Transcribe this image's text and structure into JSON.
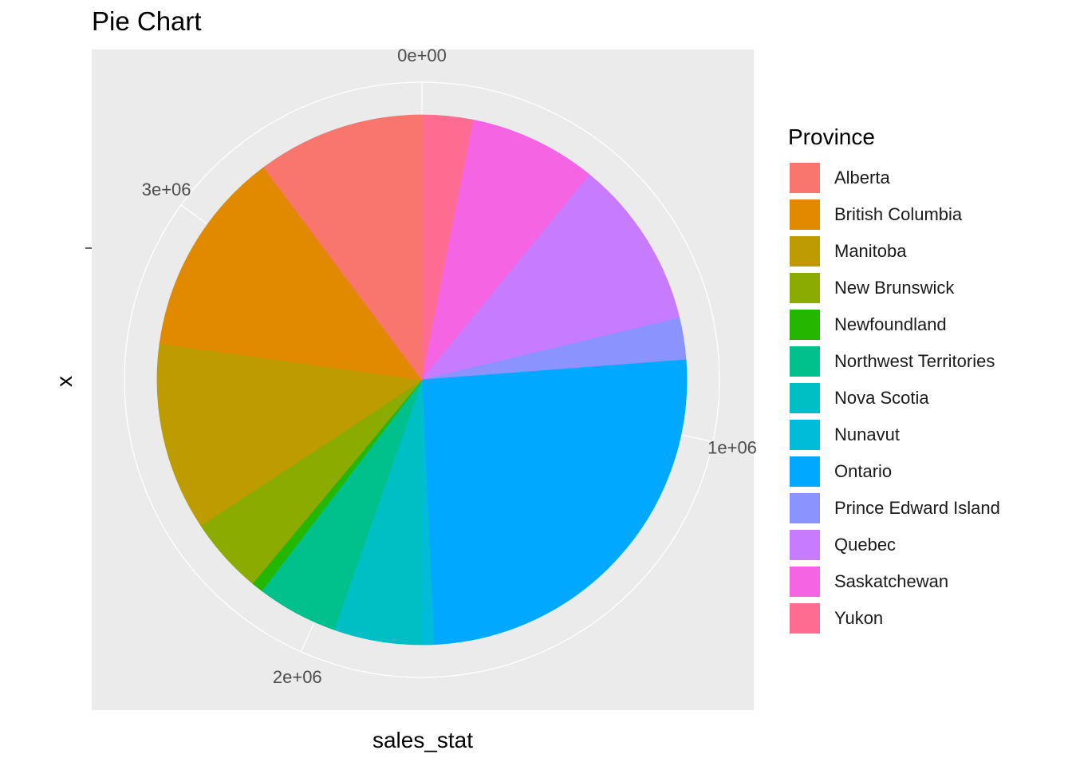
{
  "chart_data": {
    "type": "pie",
    "title": "Pie Chart",
    "xlabel": "sales_stat",
    "ylabel": "x",
    "legend_title": "Province",
    "legend_position": "right",
    "grid": true,
    "total": 3530000,
    "slices": [
      {
        "label": "Yukon",
        "value": 110000,
        "color": "#FF6C91"
      },
      {
        "label": "Saskatchewan",
        "value": 275000,
        "color": "#F564E3"
      },
      {
        "label": "Quebec",
        "value": 365000,
        "color": "#C77CFF"
      },
      {
        "label": "Prince Edward Island",
        "value": 90000,
        "color": "#8B93FF"
      },
      {
        "label": "Ontario",
        "value": 900000,
        "color": "#00A9FF"
      },
      {
        "label": "Nunavut",
        "value": 25000,
        "color": "#00BCD8"
      },
      {
        "label": "Nova Scotia",
        "value": 190000,
        "color": "#00BFC4"
      },
      {
        "label": "Northwest Territories",
        "value": 175000,
        "color": "#00C08B"
      },
      {
        "label": "Newfoundland",
        "value": 25000,
        "color": "#24B700"
      },
      {
        "label": "New Brunswick",
        "value": 165000,
        "color": "#8CAB00"
      },
      {
        "label": "Manitoba",
        "value": 405000,
        "color": "#BE9C00"
      },
      {
        "label": "British Columbia",
        "value": 445000,
        "color": "#E18A00"
      },
      {
        "label": "Alberta",
        "value": 360000,
        "color": "#F8766D"
      }
    ],
    "ticks": [
      {
        "value": 0,
        "label": "0e+00"
      },
      {
        "value": 1000000,
        "label": "1e+06"
      },
      {
        "value": 2000000,
        "label": "2e+06"
      },
      {
        "value": 3000000,
        "label": "3e+06"
      }
    ],
    "legend": [
      {
        "label": "Alberta",
        "color": "#F8766D"
      },
      {
        "label": "British Columbia",
        "color": "#E18A00"
      },
      {
        "label": "Manitoba",
        "color": "#BE9C00"
      },
      {
        "label": "New Brunswick",
        "color": "#8CAB00"
      },
      {
        "label": "Newfoundland",
        "color": "#24B700"
      },
      {
        "label": "Northwest Territories",
        "color": "#00C08B"
      },
      {
        "label": "Nova Scotia",
        "color": "#00BFC4"
      },
      {
        "label": "Nunavut",
        "color": "#00BCD8"
      },
      {
        "label": "Ontario",
        "color": "#00A9FF"
      },
      {
        "label": "Prince Edward Island",
        "color": "#8B93FF"
      },
      {
        "label": "Quebec",
        "color": "#C77CFF"
      },
      {
        "label": "Saskatchewan",
        "color": "#F564E3"
      },
      {
        "label": "Yukon",
        "color": "#FF6C91"
      }
    ]
  }
}
